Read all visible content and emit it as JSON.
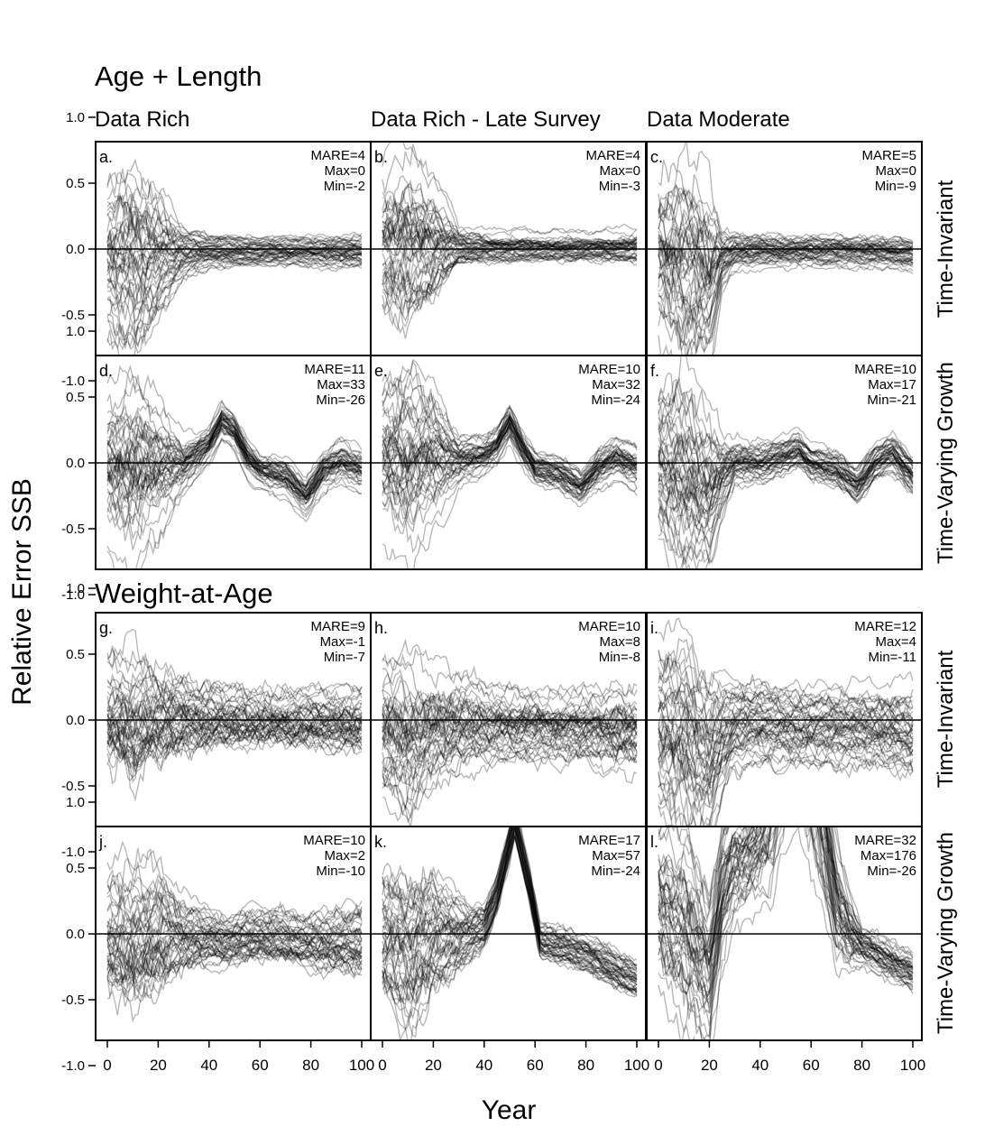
{
  "figure": {
    "section_titles": [
      "Age + Length",
      "Weight-at-Age"
    ],
    "column_titles": [
      "Data Rich",
      "Data Rich - Late Survey",
      "Data Moderate"
    ],
    "row_labels": [
      "Time-Invariant",
      "Time-Varying Growth",
      "Time-Invariant",
      "Time-Varying Growth"
    ],
    "ylabel": "Relative Error SSB",
    "xlabel": "Year",
    "line_color": "#000000",
    "line_opacity": 0.28
  },
  "chart_data": {
    "type": "line",
    "description_of_series": "Each panel shows ~100 simulation replicate trajectories of relative error in spawning stock biomass vs year",
    "xlim": [
      0,
      100
    ],
    "ylim": [
      -1.5,
      1.5
    ],
    "xticks": [
      0,
      20,
      40,
      60,
      80,
      100
    ],
    "yticks": [
      1.0,
      0.5,
      0.0,
      -0.5,
      -1.0
    ],
    "ytick_labels": [
      "1.0",
      "0.5",
      "0.0",
      "-0.5",
      "-1.0"
    ],
    "reference_line_y": 0,
    "panels": [
      {
        "label": "a.",
        "mare": "MARE=4",
        "max": "Max=0",
        "min": "Min=-2",
        "centerline": {
          "x": [
            0,
            10,
            20,
            30,
            40,
            60,
            80,
            100
          ],
          "y": [
            0,
            0,
            0,
            0,
            0,
            0,
            0,
            0
          ]
        },
        "spread": {
          "x": [
            0,
            10,
            20,
            30,
            40,
            60,
            80,
            100
          ],
          "y": [
            0.35,
            0.45,
            0.3,
            0.12,
            0.08,
            0.07,
            0.07,
            0.08
          ]
        }
      },
      {
        "label": "b.",
        "mare": "MARE=4",
        "max": "Max=0",
        "min": "Min=-3",
        "centerline": {
          "x": [
            0,
            10,
            20,
            30,
            40,
            60,
            80,
            100
          ],
          "y": [
            0,
            -0.05,
            0,
            0,
            0,
            0,
            0,
            0
          ]
        },
        "spread": {
          "x": [
            0,
            10,
            20,
            30,
            40,
            60,
            80,
            100
          ],
          "y": [
            0.35,
            0.45,
            0.3,
            0.1,
            0.08,
            0.07,
            0.07,
            0.08
          ]
        }
      },
      {
        "label": "c.",
        "mare": "MARE=5",
        "max": "Max=0",
        "min": "Min=-9",
        "centerline": {
          "x": [
            0,
            10,
            20,
            25,
            30,
            40,
            60,
            80,
            100
          ],
          "y": [
            0,
            -0.05,
            -0.15,
            -0.05,
            0,
            0,
            0,
            0,
            -0.02
          ]
        },
        "spread": {
          "x": [
            0,
            10,
            20,
            25,
            30,
            40,
            60,
            80,
            100
          ],
          "y": [
            0.4,
            0.55,
            0.45,
            0.15,
            0.09,
            0.08,
            0.08,
            0.08,
            0.08
          ]
        }
      },
      {
        "label": "d.",
        "mare": "MARE=11",
        "max": "Max=33",
        "min": "Min=-26",
        "centerline": {
          "x": [
            0,
            10,
            20,
            30,
            40,
            45,
            50,
            55,
            60,
            70,
            78,
            85,
            92,
            100
          ],
          "y": [
            0,
            0,
            0,
            0,
            0.15,
            0.33,
            0.25,
            0.05,
            -0.05,
            -0.1,
            -0.25,
            -0.05,
            0.02,
            -0.05
          ]
        },
        "spread": {
          "x": [
            0,
            10,
            20,
            30,
            40,
            60,
            80,
            100
          ],
          "y": [
            0.35,
            0.45,
            0.3,
            0.12,
            0.08,
            0.08,
            0.09,
            0.1
          ]
        }
      },
      {
        "label": "e.",
        "mare": "MARE=10",
        "max": "Max=32",
        "min": "Min=-24",
        "centerline": {
          "x": [
            0,
            10,
            20,
            30,
            40,
            45,
            50,
            55,
            60,
            70,
            78,
            85,
            92,
            100
          ],
          "y": [
            0,
            -0.05,
            0,
            0,
            0.05,
            0.12,
            0.3,
            0.1,
            -0.05,
            -0.1,
            -0.2,
            -0.05,
            0.02,
            -0.05
          ]
        },
        "spread": {
          "x": [
            0,
            10,
            20,
            30,
            40,
            60,
            80,
            100
          ],
          "y": [
            0.35,
            0.45,
            0.3,
            0.12,
            0.09,
            0.08,
            0.09,
            0.1
          ]
        }
      },
      {
        "label": "f.",
        "mare": "MARE=10",
        "max": "Max=17",
        "min": "Min=-21",
        "centerline": {
          "x": [
            0,
            10,
            20,
            25,
            30,
            40,
            50,
            55,
            60,
            70,
            78,
            85,
            92,
            100
          ],
          "y": [
            0,
            -0.1,
            -0.25,
            -0.1,
            0,
            0,
            0.05,
            0.1,
            0,
            -0.05,
            -0.18,
            0,
            0.08,
            -0.1
          ]
        },
        "spread": {
          "x": [
            0,
            10,
            20,
            25,
            30,
            40,
            60,
            80,
            100
          ],
          "y": [
            0.4,
            0.5,
            0.4,
            0.2,
            0.1,
            0.1,
            0.09,
            0.09,
            0.1
          ]
        }
      },
      {
        "label": "g.",
        "mare": "MARE=9",
        "max": "Max=-1",
        "min": "Min=-7",
        "centerline": {
          "x": [
            0,
            10,
            20,
            40,
            60,
            80,
            100
          ],
          "y": [
            0,
            -0.05,
            0,
            0,
            -0.02,
            -0.02,
            -0.03
          ]
        },
        "spread": {
          "x": [
            0,
            10,
            20,
            40,
            60,
            80,
            100
          ],
          "y": [
            0.35,
            0.4,
            0.3,
            0.2,
            0.17,
            0.18,
            0.2
          ]
        }
      },
      {
        "label": "h.",
        "mare": "MARE=10",
        "max": "Max=8",
        "min": "Min=-8",
        "centerline": {
          "x": [
            0,
            10,
            20,
            40,
            60,
            80,
            100
          ],
          "y": [
            0,
            -0.1,
            0,
            0,
            -0.02,
            -0.03,
            -0.05
          ]
        },
        "spread": {
          "x": [
            0,
            10,
            20,
            40,
            60,
            80,
            100
          ],
          "y": [
            0.35,
            0.4,
            0.3,
            0.2,
            0.18,
            0.18,
            0.22
          ]
        }
      },
      {
        "label": "i.",
        "mare": "MARE=12",
        "max": "Max=4",
        "min": "Min=-11",
        "centerline": {
          "x": [
            0,
            10,
            20,
            25,
            30,
            40,
            60,
            80,
            100
          ],
          "y": [
            0,
            -0.1,
            -0.25,
            -0.1,
            0,
            0,
            -0.03,
            -0.03,
            -0.08
          ]
        },
        "spread": {
          "x": [
            0,
            10,
            20,
            25,
            30,
            40,
            60,
            80,
            100
          ],
          "y": [
            0.4,
            0.5,
            0.4,
            0.25,
            0.2,
            0.18,
            0.18,
            0.18,
            0.2
          ]
        }
      },
      {
        "label": "j.",
        "mare": "MARE=10",
        "max": "Max=2",
        "min": "Min=-10",
        "centerline": {
          "x": [
            0,
            10,
            20,
            30,
            40,
            45,
            60,
            80,
            100
          ],
          "y": [
            0,
            -0.05,
            0,
            0,
            -0.03,
            -0.05,
            0,
            -0.05,
            -0.05
          ]
        },
        "spread": {
          "x": [
            0,
            10,
            20,
            30,
            40,
            60,
            80,
            100
          ],
          "y": [
            0.35,
            0.4,
            0.35,
            0.2,
            0.15,
            0.15,
            0.15,
            0.2
          ]
        }
      },
      {
        "label": "k.",
        "mare": "MARE=17",
        "max": "Max=57",
        "min": "Min=-24",
        "centerline": {
          "x": [
            0,
            10,
            20,
            30,
            40,
            45,
            52,
            58,
            62,
            70,
            80,
            90,
            100
          ],
          "y": [
            0,
            -0.1,
            0,
            0,
            0.05,
            0.3,
            0.85,
            0.35,
            -0.05,
            -0.1,
            -0.15,
            -0.25,
            -0.35
          ]
        },
        "spread": {
          "x": [
            0,
            10,
            20,
            30,
            40,
            60,
            80,
            100
          ],
          "y": [
            0.35,
            0.45,
            0.35,
            0.2,
            0.12,
            0.1,
            0.1,
            0.1
          ]
        }
      },
      {
        "label": "l.",
        "mare": "MARE=32",
        "max": "Max=176",
        "min": "Min=-26",
        "centerline": {
          "x": [
            0,
            10,
            20,
            25,
            30,
            35,
            40,
            45,
            50,
            55,
            60,
            65,
            70,
            75,
            80,
            90,
            100
          ],
          "y": [
            0.2,
            0.0,
            -0.3,
            0.3,
            0.55,
            0.6,
            0.7,
            1.0,
            1.5,
            1.6,
            1.3,
            0.8,
            0.2,
            0.0,
            -0.1,
            -0.2,
            -0.3
          ]
        },
        "spread": {
          "x": [
            0,
            10,
            20,
            30,
            40,
            50,
            60,
            70,
            80,
            90,
            100
          ],
          "y": [
            0.4,
            0.5,
            0.4,
            0.3,
            0.3,
            0.5,
            0.5,
            0.3,
            0.1,
            0.1,
            0.1
          ]
        }
      }
    ]
  }
}
